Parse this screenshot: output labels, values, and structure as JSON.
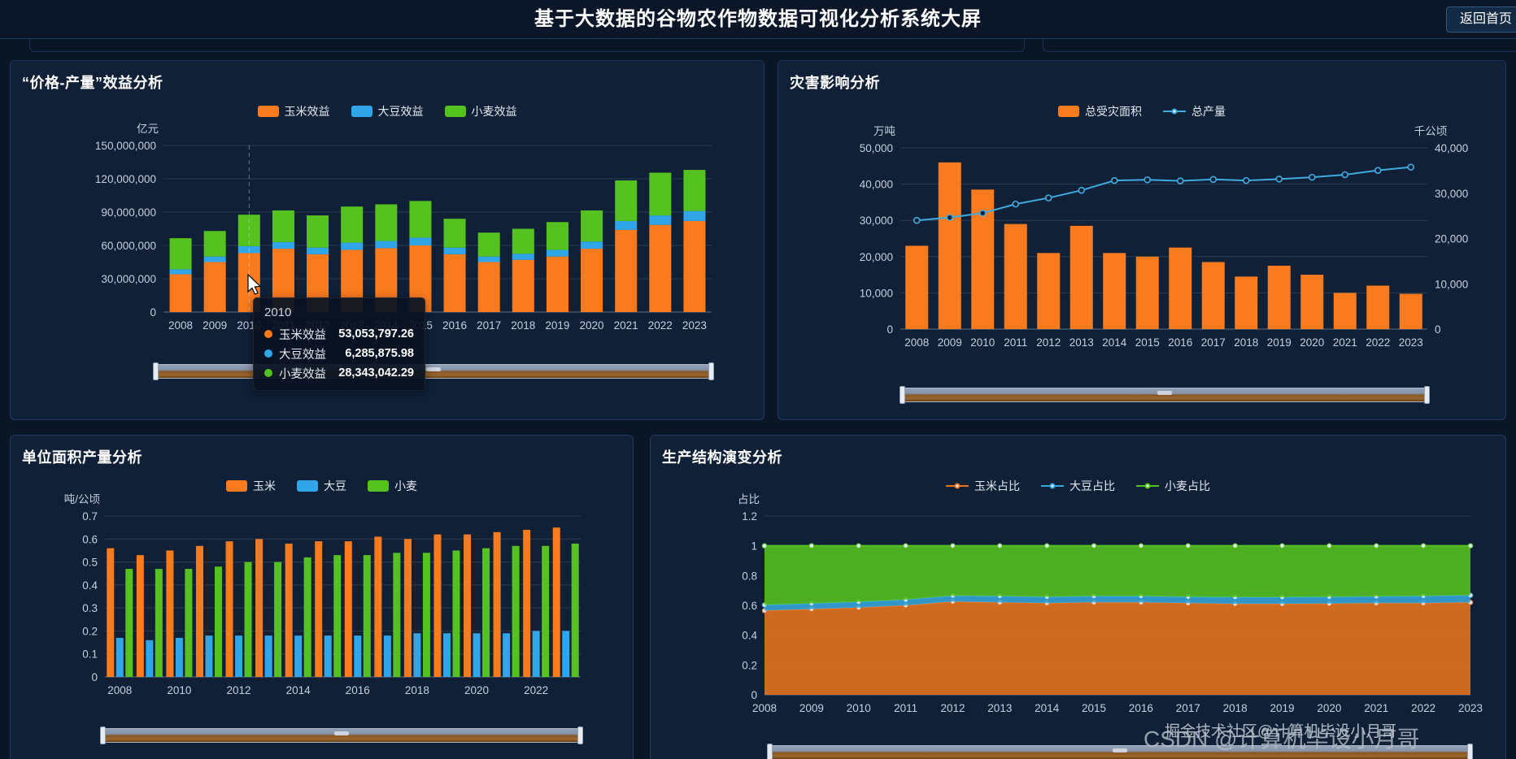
{
  "header": {
    "title": "基于大数据的谷物农作物数据可视化分析系统大屏",
    "back_button": "返回首页"
  },
  "panels": [
    {
      "title": "“价格-产量”效益分析"
    },
    {
      "title": "灾害影响分析"
    },
    {
      "title": "单位面积产量分析"
    },
    {
      "title": "生产结构演变分析"
    }
  ],
  "watermarks": {
    "juejin": "掘金技术社区@计算机毕设小月哥",
    "csdn": "CSDN @计算机毕设小月哥"
  },
  "colors": {
    "page_bg": "#0a1526",
    "panel_bg": "#0f2037",
    "corn_orange": "#fa7b1d",
    "soybean_blue": "#30a5e8",
    "wheat_green": "#56c21f",
    "line_blue": "#3fabdf"
  },
  "chart_data": [
    {
      "id": "benefit",
      "type": "bar",
      "stacked": true,
      "title": "“价格-产量”效益分析",
      "ylabel": "亿元",
      "ylim": [
        0,
        150000000
      ],
      "yticks": [
        "0",
        "30,000,000",
        "60,000,000",
        "90,000,000",
        "120,000,000",
        "150,000,000"
      ],
      "categories": [
        "2008",
        "2009",
        "2010",
        "2011",
        "2012",
        "2013",
        "2014",
        "2015",
        "2016",
        "2017",
        "2018",
        "2019",
        "2020",
        "2021",
        "2022",
        "2023"
      ],
      "series": [
        {
          "name": "玉米效益",
          "color": "#fa7b1d",
          "legend": "rect",
          "values": [
            34000000,
            45000000,
            53053797.26,
            57000000,
            52000000,
            56000000,
            57500000,
            60000000,
            52000000,
            45000000,
            47000000,
            50000000,
            57000000,
            74000000,
            78500000,
            82000000
          ]
        },
        {
          "name": "大豆效益",
          "color": "#30a5e8",
          "legend": "rect",
          "values": [
            4500000,
            5000000,
            6285875.98,
            6000000,
            6000000,
            6500000,
            6500000,
            7000000,
            6000000,
            5000000,
            5500000,
            6000000,
            6500000,
            8000000,
            8500000,
            9000000
          ]
        },
        {
          "name": "小麦效益",
          "color": "#56c21f",
          "legend": "rect",
          "values": [
            28000000,
            23000000,
            28343042.29,
            28500000,
            29000000,
            32500000,
            33000000,
            33000000,
            26000000,
            21500000,
            22500000,
            25000000,
            28000000,
            36500000,
            38500000,
            37000000
          ]
        }
      ],
      "pointer_index": 2,
      "tooltip": {
        "title": "2010",
        "rows": [
          {
            "label": "玉米效益",
            "value": "53,053,797.26"
          },
          {
            "label": "大豆效益",
            "value": "6,285,875.98"
          },
          {
            "label": "小麦效益",
            "value": "28,343,042.29"
          }
        ]
      }
    },
    {
      "id": "disaster",
      "type": "bar+line",
      "title": "灾害影响分析",
      "ylabel_left": "万吨",
      "ylabel_right": "千公顷",
      "ylim_left": [
        0,
        50000
      ],
      "ylim_right": [
        0,
        40000
      ],
      "yticks_left": [
        "0",
        "10,000",
        "20,000",
        "30,000",
        "40,000",
        "50,000"
      ],
      "yticks_right": [
        "0",
        "10,000",
        "20,000",
        "30,000",
        "40,000"
      ],
      "categories": [
        "2008",
        "2009",
        "2010",
        "2011",
        "2012",
        "2013",
        "2014",
        "2015",
        "2016",
        "2017",
        "2018",
        "2019",
        "2020",
        "2021",
        "2022",
        "2023"
      ],
      "series": [
        {
          "name": "总受灾面积",
          "type": "bar",
          "axis": "right",
          "color": "#fa7b1d",
          "legend": "rect",
          "values": [
            18400,
            36800,
            30800,
            23200,
            16800,
            22800,
            16800,
            16000,
            18000,
            14800,
            11600,
            14000,
            12000,
            8000,
            9600,
            7800
          ]
        },
        {
          "name": "总产量",
          "type": "line",
          "axis": "left",
          "color": "#3fabdf",
          "legend": "line",
          "values": [
            30000,
            30800,
            32000,
            34500,
            36200,
            38300,
            41000,
            41200,
            40900,
            41300,
            41000,
            41400,
            41900,
            42600,
            43800,
            44700
          ]
        }
      ]
    },
    {
      "id": "yield",
      "type": "bar",
      "grouped": true,
      "title": "单位面积产量分析",
      "ylabel": "吨/公顷",
      "ylim": [
        0,
        0.7
      ],
      "yticks": [
        "0",
        "0.1",
        "0.2",
        "0.3",
        "0.4",
        "0.5",
        "0.6",
        "0.7"
      ],
      "xtick_step": 2,
      "categories": [
        "2008",
        "2009",
        "2010",
        "2011",
        "2012",
        "2013",
        "2014",
        "2015",
        "2016",
        "2017",
        "2018",
        "2019",
        "2020",
        "2021",
        "2022",
        "2023"
      ],
      "series": [
        {
          "name": "玉米",
          "color": "#fa7b1d",
          "legend": "rect",
          "values": [
            0.56,
            0.53,
            0.55,
            0.57,
            0.59,
            0.6,
            0.58,
            0.59,
            0.59,
            0.61,
            0.6,
            0.62,
            0.62,
            0.63,
            0.64,
            0.65
          ]
        },
        {
          "name": "大豆",
          "color": "#30a5e8",
          "legend": "rect",
          "values": [
            0.17,
            0.16,
            0.17,
            0.18,
            0.18,
            0.18,
            0.18,
            0.18,
            0.18,
            0.18,
            0.19,
            0.19,
            0.19,
            0.19,
            0.2,
            0.2
          ]
        },
        {
          "name": "小麦",
          "color": "#56c21f",
          "legend": "rect",
          "values": [
            0.47,
            0.47,
            0.47,
            0.48,
            0.5,
            0.5,
            0.52,
            0.53,
            0.53,
            0.54,
            0.54,
            0.55,
            0.56,
            0.57,
            0.57,
            0.58
          ]
        }
      ]
    },
    {
      "id": "structure",
      "type": "area",
      "stacked": true,
      "title": "生产结构演变分析",
      "ylabel": "占比",
      "ylim": [
        0,
        1.2
      ],
      "yticks": [
        "0",
        "0.2",
        "0.4",
        "0.6",
        "0.8",
        "1",
        "1.2"
      ],
      "categories": [
        "2008",
        "2009",
        "2010",
        "2011",
        "2012",
        "2013",
        "2014",
        "2015",
        "2016",
        "2017",
        "2018",
        "2019",
        "2020",
        "2021",
        "2022",
        "2023"
      ],
      "series": [
        {
          "name": "玉米占比",
          "color": "#e8741d",
          "legend": "line",
          "values": [
            0.565,
            0.575,
            0.585,
            0.6,
            0.625,
            0.62,
            0.615,
            0.62,
            0.62,
            0.615,
            0.61,
            0.61,
            0.612,
            0.615,
            0.615,
            0.62
          ]
        },
        {
          "name": "大豆占比",
          "color": "#35a5dc",
          "legend": "line",
          "values": [
            0.038,
            0.038,
            0.038,
            0.038,
            0.04,
            0.042,
            0.042,
            0.042,
            0.042,
            0.042,
            0.045,
            0.045,
            0.045,
            0.045,
            0.048,
            0.048
          ]
        },
        {
          "name": "小麦占比",
          "color": "#56c21f",
          "legend": "line",
          "values": [
            0.397,
            0.387,
            0.377,
            0.362,
            0.335,
            0.338,
            0.343,
            0.338,
            0.338,
            0.343,
            0.345,
            0.345,
            0.343,
            0.34,
            0.337,
            0.332
          ]
        }
      ]
    }
  ]
}
